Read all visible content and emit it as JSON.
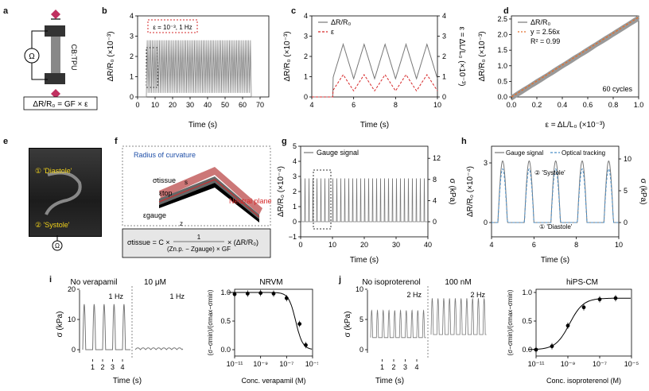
{
  "panels": {
    "a": {
      "label": "a",
      "device": "CB:TPU",
      "ohm": "Ω",
      "formula": "ΔR/R₀ = GF × ε"
    },
    "b": {
      "label": "b",
      "annotation": "ε = 10⁻³, 1 Hz",
      "xlabel": "Time (s)",
      "ylabel": "ΔR/R₀ (×10⁻³)",
      "xticks": [
        "0",
        "10",
        "20",
        "30",
        "40",
        "50",
        "60",
        "70"
      ],
      "yticks": [
        "0",
        "1",
        "2",
        "3",
        "4"
      ]
    },
    "c": {
      "label": "c",
      "xlabel": "Time (s)",
      "ylabel": "ΔR/R₀ (×10⁻³)",
      "ylabel_right": "ε = ΔL/L₀ (×10⁻³)",
      "xticks": [
        "4",
        "6",
        "8",
        "10"
      ],
      "yticks": [
        "0",
        "1",
        "2",
        "3",
        "4"
      ],
      "yticks_right": [
        "0",
        "1",
        "2",
        "3",
        "4"
      ],
      "legend": [
        "ΔR/R₀",
        "ε"
      ]
    },
    "d": {
      "label": "d",
      "xlabel": "ε = ΔL/L₀ (×10⁻³)",
      "ylabel": "ΔR/R₀ (×10⁻³)",
      "xticks": [
        "0.0",
        "0.2",
        "0.4",
        "0.6",
        "0.8",
        "1.0"
      ],
      "yticks": [
        "0.0",
        "0.5",
        "1.0",
        "1.5",
        "2.0",
        "2.5"
      ],
      "legend": [
        "ΔR/R₀",
        "y = 2.56x",
        "R² = 0.99"
      ],
      "note": "60 cycles"
    },
    "e": {
      "label": "e",
      "diastole": "① 'Diastole'",
      "systole": "② 'Systole'"
    },
    "f": {
      "label": "f",
      "radius": "Radius of curvature",
      "sigma_tissue": "σtissue",
      "eps_top": "εtop",
      "eps_gauge": "εgauge",
      "s": "s",
      "z": "z",
      "neutral": "Neutral plane",
      "formula_left": "σtissue = C ×",
      "formula_num": "1",
      "formula_den": "(Zn.p. − Zgauge) × GF",
      "formula_right": "× (ΔR/R₀)"
    },
    "g": {
      "label": "g",
      "legend": "Gauge signal",
      "xlabel": "Time (s)",
      "ylabel": "ΔR/R₀ (×10⁻⁴)",
      "ylabel_right": "σ (kPa)",
      "xticks": [
        "0",
        "10",
        "20",
        "30",
        "40"
      ],
      "yticks": [
        "−1",
        "0",
        "1",
        "2",
        "3",
        "4",
        "5"
      ],
      "yticks_right": [
        "0",
        "4",
        "8",
        "12"
      ]
    },
    "h": {
      "label": "h",
      "legend": [
        "Gauge signal",
        "Optical tracking"
      ],
      "xlabel": "Time (s)",
      "ylabel": "ΔR/R₀ (×10⁻⁴)",
      "ylabel_right": "σ (kPa)",
      "xticks": [
        "4",
        "6",
        "8",
        "10"
      ],
      "yticks": [
        "0",
        "3"
      ],
      "yticks_right": [
        "0",
        "5",
        "10"
      ],
      "systole": "② 'Systole'",
      "diastole": "① 'Diastole'"
    },
    "i": {
      "label": "i",
      "cond1": "No verapamil",
      "cond2": "10 μM",
      "freq1": "1 Hz",
      "freq2": "1 Hz",
      "ylabel": "σ (kPa)",
      "xlabel": "Time (s)",
      "yticks": [
        "0",
        "10",
        "20"
      ],
      "xticks": [
        "1",
        "2",
        "3",
        "4"
      ]
    },
    "i2": {
      "title": "NRVM",
      "xlabel": "Conc. verapamil (M)",
      "ylabel": "(σ−σmin)/(σmax−σmin)",
      "xticks": [
        "10⁻¹¹",
        "10⁻⁹",
        "10⁻⁷",
        "10⁻⁵"
      ],
      "yticks": [
        "0.0",
        "0.5",
        "1.0"
      ]
    },
    "j": {
      "label": "j",
      "cond1": "No isoproterenol",
      "cond2": "100 nM",
      "freq1": "2 Hz",
      "freq2": "2 Hz",
      "ylabel": "σ (kPa)",
      "xlabel": "Time (s)",
      "yticks": [
        "0",
        "5",
        "10"
      ],
      "xticks": [
        "1",
        "2",
        "3",
        "4"
      ]
    },
    "j2": {
      "title": "hiPS-CM",
      "xlabel": "Conc. isoproterenol (M)",
      "ylabel": "(σ−σmin)/(σmax−σmin)",
      "xticks": [
        "10⁻¹¹",
        "10⁻⁹",
        "10⁻⁷",
        "10⁻⁵"
      ],
      "yticks": [
        "0.0",
        "0.5",
        "1.0"
      ]
    }
  },
  "chart_data": [
    {
      "id": "d",
      "type": "line",
      "xlabel": "ε = ΔL/L₀ (×10⁻³)",
      "ylabel": "ΔR/R₀ (×10⁻³)",
      "xlim": [
        0,
        1
      ],
      "ylim": [
        0,
        2.6
      ],
      "series": [
        {
          "name": "y = 2.56x",
          "x": [
            0,
            1
          ],
          "y": [
            0,
            2.56
          ]
        }
      ]
    },
    {
      "id": "i2",
      "type": "scatter",
      "xlabel": "Conc. verapamil (M)",
      "x_scale": "log",
      "series": [
        {
          "x": [
            1e-11,
            1e-10,
            1e-09,
            1e-08,
            1e-07,
            1e-06,
            3e-06
          ],
          "y": [
            0.97,
            0.98,
            0.99,
            0.98,
            0.9,
            0.45,
            0.08
          ]
        }
      ]
    },
    {
      "id": "j2",
      "type": "scatter",
      "xlabel": "Conc. isoproterenol (M)",
      "x_scale": "log",
      "series": [
        {
          "x": [
            1e-11,
            1e-10,
            1e-09,
            1e-08,
            1e-07,
            1e-06
          ],
          "y": [
            0.0,
            0.06,
            0.42,
            0.74,
            0.88,
            0.9
          ]
        }
      ]
    }
  ],
  "colors": {
    "gray": "#777777",
    "red": "#d62728",
    "orange": "#e07030",
    "blue": "#4a8fc8",
    "dashed_box": "#333333"
  }
}
